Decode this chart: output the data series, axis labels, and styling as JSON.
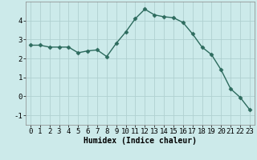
{
  "x": [
    0,
    1,
    2,
    3,
    4,
    5,
    6,
    7,
    8,
    9,
    10,
    11,
    12,
    13,
    14,
    15,
    16,
    17,
    18,
    19,
    20,
    21,
    22,
    23
  ],
  "y": [
    2.7,
    2.7,
    2.6,
    2.6,
    2.6,
    2.3,
    2.4,
    2.45,
    2.1,
    2.8,
    3.4,
    4.1,
    4.6,
    4.3,
    4.2,
    4.15,
    3.9,
    3.3,
    2.6,
    2.2,
    1.4,
    0.4,
    -0.05,
    -0.7
  ],
  "line_color": "#2d6b5e",
  "marker": "D",
  "marker_size": 2.5,
  "linewidth": 1.0,
  "xlabel": "Humidex (Indice chaleur)",
  "xlim": [
    -0.5,
    23.5
  ],
  "ylim": [
    -1.5,
    5.0
  ],
  "yticks": [
    -1,
    0,
    1,
    2,
    3,
    4
  ],
  "xticks": [
    0,
    1,
    2,
    3,
    4,
    5,
    6,
    7,
    8,
    9,
    10,
    11,
    12,
    13,
    14,
    15,
    16,
    17,
    18,
    19,
    20,
    21,
    22,
    23
  ],
  "bg_color": "#cceaea",
  "grid_color": "#b0d0d0",
  "xlabel_fontsize": 7,
  "tick_fontsize": 6.5
}
